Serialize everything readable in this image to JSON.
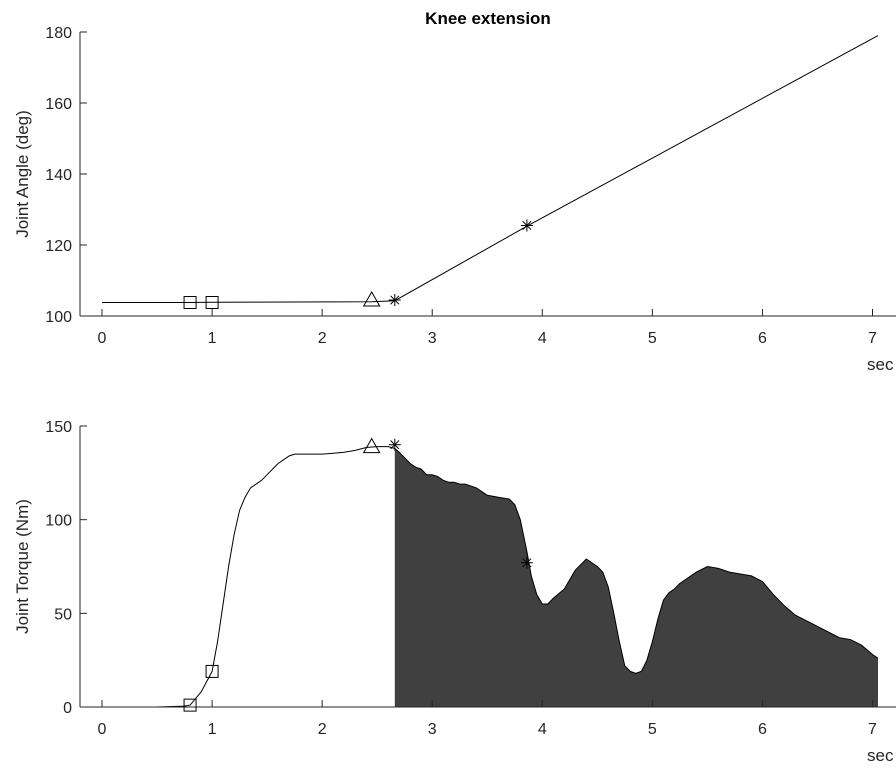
{
  "chart_data": [
    {
      "type": "line",
      "title": "Knee extension",
      "xlabel": "sec",
      "ylabel": "Joint Angle (deg)",
      "xlim": [
        -0.2,
        7.05
      ],
      "ylim": [
        100,
        180
      ],
      "xticks": [
        0,
        1,
        2,
        3,
        4,
        5,
        6,
        7
      ],
      "yticks": [
        100,
        120,
        140,
        160,
        180
      ],
      "x_tick_labels": [
        "0",
        "1",
        "2",
        "3",
        "4",
        "5",
        "6",
        "7"
      ],
      "y_tick_labels": [
        "100",
        "120",
        "140",
        "160",
        "180"
      ],
      "series": [
        {
          "x": [
            0,
            0.8,
            1,
            2.45,
            2.66,
            3.86,
            7.05
          ],
          "y": [
            103.8,
            103.8,
            103.9,
            104,
            104.3,
            125.3,
            179
          ]
        }
      ],
      "markers": [
        {
          "shape": "square",
          "x": 0.8,
          "y": 103.8
        },
        {
          "shape": "square",
          "x": 1.0,
          "y": 103.8
        },
        {
          "shape": "triangle",
          "x": 2.45,
          "y": 104.5
        },
        {
          "shape": "asterisk",
          "x": 2.66,
          "y": 104.5
        },
        {
          "shape": "asterisk",
          "x": 3.86,
          "y": 125.5
        }
      ]
    },
    {
      "type": "area",
      "title": "",
      "xlabel": "sec",
      "ylabel": "Joint Torque (Nm)",
      "xlim": [
        -0.2,
        7.05
      ],
      "ylim": [
        0,
        150
      ],
      "xticks": [
        0,
        1,
        2,
        3,
        4,
        5,
        6,
        7
      ],
      "yticks": [
        0,
        50,
        100,
        150
      ],
      "x_tick_labels": [
        "0",
        "1",
        "2",
        "3",
        "4",
        "5",
        "6",
        "7"
      ],
      "y_tick_labels": [
        "0",
        "50",
        "100",
        "150"
      ],
      "fill_start_x": 2.66,
      "fill_color": "#404040",
      "series": [
        {
          "x": [
            -0.2,
            0.5,
            0.75,
            0.8,
            0.9,
            1.0,
            1.05,
            1.1,
            1.15,
            1.2,
            1.25,
            1.3,
            1.35,
            1.4,
            1.45,
            1.5,
            1.55,
            1.6,
            1.65,
            1.7,
            1.75,
            1.8,
            1.9,
            2.0,
            2.1,
            2.2,
            2.3,
            2.4,
            2.5,
            2.6,
            2.66,
            2.7,
            2.75,
            2.8,
            2.85,
            2.9,
            2.95,
            3.0,
            3.05,
            3.1,
            3.15,
            3.2,
            3.25,
            3.3,
            3.4,
            3.5,
            3.6,
            3.7,
            3.75,
            3.8,
            3.86,
            3.9,
            3.95,
            4.0,
            4.05,
            4.1,
            4.2,
            4.3,
            4.4,
            4.5,
            4.55,
            4.6,
            4.65,
            4.7,
            4.75,
            4.8,
            4.85,
            4.9,
            4.95,
            5.0,
            5.05,
            5.1,
            5.15,
            5.2,
            5.25,
            5.3,
            5.4,
            5.5,
            5.6,
            5.7,
            5.8,
            5.9,
            6.0,
            6.1,
            6.2,
            6.3,
            6.4,
            6.5,
            6.6,
            6.7,
            6.8,
            6.9,
            7.0,
            7.05
          ],
          "y": [
            0,
            0,
            0.5,
            1,
            8,
            19,
            35,
            55,
            75,
            92,
            105,
            112,
            117,
            119,
            121,
            124,
            127,
            130,
            132,
            134,
            135,
            135,
            135,
            135,
            135.5,
            136,
            137,
            138.5,
            139,
            139,
            138,
            136,
            133,
            130,
            128,
            127,
            124,
            124,
            123,
            121,
            120,
            120,
            119,
            119,
            117,
            113,
            112,
            111,
            108,
            100,
            83,
            70,
            60,
            55,
            55,
            58,
            63,
            73,
            79,
            75,
            72,
            64,
            50,
            35,
            22,
            19,
            18,
            19,
            25,
            35,
            47,
            57,
            61,
            63,
            66,
            68,
            72,
            75,
            74,
            72,
            71,
            70,
            67,
            60,
            54,
            49,
            46,
            43,
            40,
            37,
            36,
            33,
            28,
            26
          ]
        }
      ],
      "markers": [
        {
          "shape": "square",
          "x": 0.8,
          "y": 1
        },
        {
          "shape": "square",
          "x": 1.0,
          "y": 19
        },
        {
          "shape": "triangle",
          "x": 2.45,
          "y": 139
        },
        {
          "shape": "asterisk",
          "x": 2.66,
          "y": 140
        },
        {
          "shape": "asterisk",
          "x": 3.86,
          "y": 77
        }
      ]
    }
  ]
}
